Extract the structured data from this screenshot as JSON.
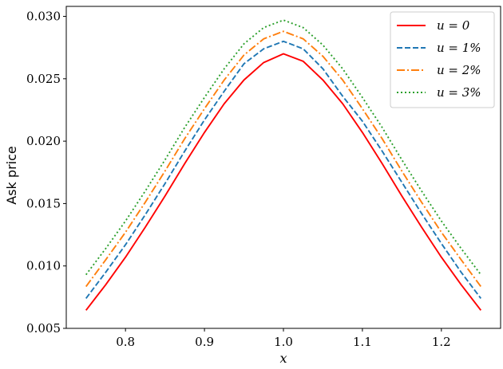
{
  "chart_data": {
    "type": "line",
    "title": "",
    "xlabel": "x",
    "ylabel": "Ask price",
    "xlim": [
      0.725,
      1.275
    ],
    "ylim": [
      0.005,
      0.0308
    ],
    "xticks": [
      0.8,
      0.9,
      1.0,
      1.1,
      1.2
    ],
    "xtick_labels": [
      "0.8",
      "0.9",
      "1.0",
      "1.1",
      "1.2"
    ],
    "yticks": [
      0.005,
      0.01,
      0.015,
      0.02,
      0.025,
      0.03
    ],
    "ytick_labels": [
      "0.005",
      "0.010",
      "0.015",
      "0.020",
      "0.025",
      "0.030"
    ],
    "grid": false,
    "legend_position": "top-right",
    "x": [
      0.75,
      0.775,
      0.8,
      0.825,
      0.85,
      0.875,
      0.9,
      0.925,
      0.95,
      0.975,
      1.0,
      1.025,
      1.05,
      1.075,
      1.1,
      1.125,
      1.15,
      1.175,
      1.2,
      1.225,
      1.25
    ],
    "series": [
      {
        "name": "u = 0",
        "color": "#ff0000",
        "dash": "solid",
        "values": [
          0.00645,
          0.0085,
          0.0107,
          0.0131,
          0.0156,
          0.0182,
          0.0207,
          0.023,
          0.0249,
          0.0263,
          0.027,
          0.0264,
          0.0249,
          0.023,
          0.0207,
          0.0182,
          0.0156,
          0.0131,
          0.0107,
          0.0085,
          0.00645
        ]
      },
      {
        "name": "u = 1%",
        "color": "#1f77b4",
        "dash": "dashed",
        "values": [
          0.0074,
          0.0095,
          0.0117,
          0.0141,
          0.0166,
          0.0192,
          0.0217,
          0.024,
          0.0262,
          0.0274,
          0.028,
          0.0274,
          0.0258,
          0.0236,
          0.0216,
          0.0192,
          0.0167,
          0.0142,
          0.0118,
          0.0095,
          0.0074
        ]
      },
      {
        "name": "u = 2%",
        "color": "#ff7f0e",
        "dash": "dashdot",
        "values": [
          0.00835,
          0.0105,
          0.0127,
          0.0151,
          0.0176,
          0.0202,
          0.0226,
          0.0249,
          0.0269,
          0.0282,
          0.0288,
          0.0282,
          0.0268,
          0.0249,
          0.0226,
          0.0202,
          0.0176,
          0.0151,
          0.0127,
          0.0105,
          0.00835
        ]
      },
      {
        "name": "u = 3%",
        "color": "#2ca02c",
        "dash": "dotted",
        "values": [
          0.0093,
          0.0114,
          0.0136,
          0.016,
          0.0185,
          0.0211,
          0.0235,
          0.0258,
          0.0278,
          0.0291,
          0.0297,
          0.0291,
          0.0277,
          0.0258,
          0.0235,
          0.0211,
          0.0185,
          0.016,
          0.0136,
          0.0114,
          0.0093
        ]
      }
    ]
  }
}
